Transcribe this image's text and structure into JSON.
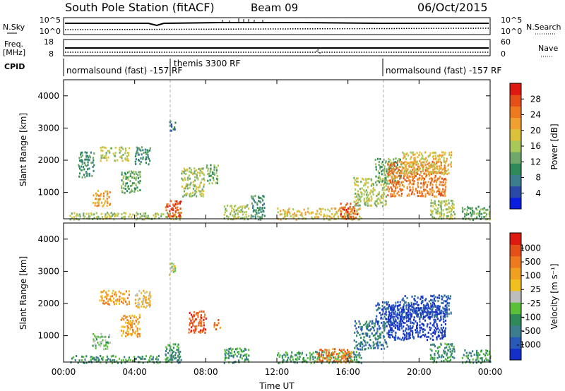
{
  "header": {
    "station": "South Pole Station (fitACF)",
    "beam": "Beam 09",
    "date": "06/Oct/2015"
  },
  "top_panels": {
    "nsky_label": "N.Sky",
    "nsky_ticks": [
      "10^5",
      "10^0"
    ],
    "nsearch_label": "N.Search",
    "nsearch_ticks": [
      "10^5",
      "10^0"
    ],
    "freq_label_1": "Freq.",
    "freq_label_2": "[MHz]",
    "freq_ticks": [
      "18",
      "8"
    ],
    "nave_label": "Nave",
    "nave_ticks": [
      "60",
      "0"
    ],
    "cpid_label": "CPID",
    "cpid_segments": [
      {
        "label": "normalsound (fast) -157 RF",
        "start_hour": 0.0
      },
      {
        "label": "themis 3300 RF",
        "start_hour": 6.0
      },
      {
        "label": "normalsound (fast) -157 RF",
        "start_hour": 18.0
      }
    ]
  },
  "chart_data": [
    {
      "type": "heatmap",
      "panel": "power",
      "ylabel": "Slant Range [km]",
      "xlabel": "",
      "x_ticks": [
        "00:00",
        "04:00",
        "08:00",
        "12:00",
        "16:00",
        "20:00",
        "00:00"
      ],
      "xlim_hours": [
        0,
        24
      ],
      "ylim": [
        180,
        4500
      ],
      "y_ticks": [
        1000,
        2000,
        3000,
        4000
      ],
      "colorbar": {
        "label": "Power [dB]",
        "ticks": [
          "4",
          "8",
          "12",
          "16",
          "20",
          "24",
          "28"
        ],
        "colors": [
          "#0a1ee0",
          "#2a4aa8",
          "#3d7e8e",
          "#2e8b57",
          "#6fa86a",
          "#a8c85a",
          "#dcc23a",
          "#f0a030",
          "#ee7a20",
          "#e55018",
          "#dd1a10"
        ]
      },
      "echo_regions": [
        {
          "t0": 0.3,
          "t1": 6.6,
          "r0": 180,
          "r1": 420,
          "level": 5
        },
        {
          "t0": 0.8,
          "t1": 1.7,
          "r0": 1500,
          "r1": 2300,
          "level": 3
        },
        {
          "t0": 1.6,
          "t1": 2.6,
          "r0": 600,
          "r1": 1100,
          "level": 7
        },
        {
          "t0": 2.0,
          "t1": 3.7,
          "r0": 2000,
          "r1": 2450,
          "level": 5
        },
        {
          "t0": 3.2,
          "t1": 4.3,
          "r0": 1000,
          "r1": 1700,
          "level": 4
        },
        {
          "t0": 4.0,
          "t1": 4.9,
          "r0": 1900,
          "r1": 2450,
          "level": 3
        },
        {
          "t0": 5.7,
          "t1": 6.6,
          "r0": 250,
          "r1": 780,
          "level": 9
        },
        {
          "t0": 5.9,
          "t1": 6.3,
          "r0": 2900,
          "r1": 3300,
          "level": 2
        },
        {
          "t0": 6.6,
          "t1": 7.9,
          "r0": 900,
          "r1": 1800,
          "level": 5
        },
        {
          "t0": 8.0,
          "t1": 8.7,
          "r0": 1300,
          "r1": 1900,
          "level": 4
        },
        {
          "t0": 9.0,
          "t1": 10.4,
          "r0": 180,
          "r1": 650,
          "level": 5
        },
        {
          "t0": 10.5,
          "t1": 11.3,
          "r0": 180,
          "r1": 950,
          "level": 3
        },
        {
          "t0": 12.0,
          "t1": 16.8,
          "r0": 180,
          "r1": 550,
          "level": 6
        },
        {
          "t0": 15.5,
          "t1": 16.5,
          "r0": 200,
          "r1": 700,
          "level": 9
        },
        {
          "t0": 16.3,
          "t1": 18.2,
          "r0": 600,
          "r1": 1500,
          "level": 5
        },
        {
          "t0": 17.5,
          "t1": 19.0,
          "r0": 1300,
          "r1": 2100,
          "level": 4
        },
        {
          "t0": 18.2,
          "t1": 21.5,
          "r0": 900,
          "r1": 2000,
          "level": 8
        },
        {
          "t0": 19.0,
          "t1": 21.8,
          "r0": 1600,
          "r1": 2300,
          "level": 6
        },
        {
          "t0": 20.6,
          "t1": 22.0,
          "r0": 200,
          "r1": 800,
          "level": 5
        },
        {
          "t0": 22.4,
          "t1": 24.0,
          "r0": 180,
          "r1": 600,
          "level": 4
        }
      ]
    },
    {
      "type": "heatmap",
      "panel": "velocity",
      "ylabel": "Slant Range [km]",
      "xlabel": "Time UT",
      "x_ticks": [
        "00:00",
        "04:00",
        "08:00",
        "12:00",
        "16:00",
        "20:00",
        "00:00"
      ],
      "xlim_hours": [
        0,
        24
      ],
      "ylim": [
        180,
        4500
      ],
      "y_ticks": [
        1000,
        2000,
        3000,
        4000
      ],
      "colorbar": {
        "label": "Velocity [m s⁻¹]",
        "ticks": [
          "1000",
          "500",
          "100",
          "25",
          "-25",
          "-100",
          "-500",
          "-1000"
        ],
        "colors": [
          "#1530c8",
          "#2a5ab8",
          "#3d7e8e",
          "#2e8b57",
          "#5ac03a",
          "#bdbdbd",
          "#f0c020",
          "#f0a020",
          "#ee7a20",
          "#e55018",
          "#dd1a10"
        ]
      },
      "echo_regions": [
        {
          "t0": 0.3,
          "t1": 6.6,
          "r0": 180,
          "r1": 420,
          "level": 3
        },
        {
          "t0": 1.6,
          "t1": 2.6,
          "r0": 600,
          "r1": 1100,
          "level": 4
        },
        {
          "t0": 2.0,
          "t1": 3.7,
          "r0": 2000,
          "r1": 2450,
          "level": 7
        },
        {
          "t0": 3.2,
          "t1": 4.3,
          "r0": 1000,
          "r1": 1700,
          "level": 7
        },
        {
          "t0": 4.0,
          "t1": 4.9,
          "r0": 1900,
          "r1": 2450,
          "level": 6
        },
        {
          "t0": 5.7,
          "t1": 6.6,
          "r0": 250,
          "r1": 780,
          "level": 3
        },
        {
          "t0": 5.9,
          "t1": 6.3,
          "r0": 2900,
          "r1": 3300,
          "level": 5
        },
        {
          "t0": 7.0,
          "t1": 8.0,
          "r0": 1100,
          "r1": 1800,
          "level": 9
        },
        {
          "t0": 8.4,
          "t1": 8.8,
          "r0": 1200,
          "r1": 1600,
          "level": 8
        },
        {
          "t0": 9.0,
          "t1": 10.4,
          "r0": 180,
          "r1": 650,
          "level": 3
        },
        {
          "t0": 12.0,
          "t1": 16.8,
          "r0": 180,
          "r1": 550,
          "level": 3
        },
        {
          "t0": 14.2,
          "t1": 16.2,
          "r0": 200,
          "r1": 650,
          "level": 8
        },
        {
          "t0": 16.3,
          "t1": 18.2,
          "r0": 600,
          "r1": 1500,
          "level": 2
        },
        {
          "t0": 17.5,
          "t1": 19.0,
          "r0": 1300,
          "r1": 2100,
          "level": 1
        },
        {
          "t0": 18.2,
          "t1": 21.5,
          "r0": 900,
          "r1": 2000,
          "level": 0
        },
        {
          "t0": 19.0,
          "t1": 21.8,
          "r0": 1600,
          "r1": 2300,
          "level": 1
        },
        {
          "t0": 20.6,
          "t1": 22.0,
          "r0": 200,
          "r1": 800,
          "level": 3
        },
        {
          "t0": 22.4,
          "t1": 24.0,
          "r0": 180,
          "r1": 600,
          "level": 3
        }
      ]
    }
  ]
}
